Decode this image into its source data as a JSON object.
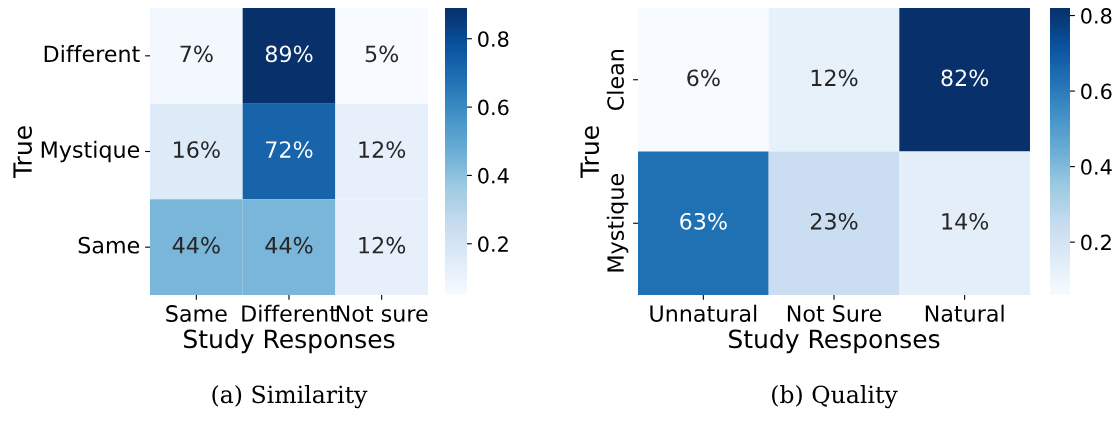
{
  "chart_data": [
    {
      "type": "heatmap",
      "xlabel": "Study Responses",
      "ylabel": "True",
      "categories": [
        "Same",
        "Different",
        "Not sure"
      ],
      "y_categories": [
        "Different",
        "Mystique",
        "Same"
      ],
      "cells": [
        [
          0.07,
          0.89,
          0.05
        ],
        [
          0.16,
          0.72,
          0.12
        ],
        [
          0.44,
          0.44,
          0.12
        ]
      ],
      "cell_labels": [
        [
          "7%",
          "89%",
          "5%"
        ],
        [
          "16%",
          "72%",
          "12%"
        ],
        [
          "44%",
          "44%",
          "12%"
        ]
      ],
      "clim": [
        0.05,
        0.89
      ],
      "cticks": [
        0.2,
        0.4,
        0.6,
        0.8
      ],
      "annotations": [
        "(a) Similarity"
      ]
    },
    {
      "type": "heatmap",
      "xlabel": "Study Responses",
      "ylabel": "True",
      "categories": [
        "Unnatural",
        "Not Sure",
        "Natural"
      ],
      "y_categories": [
        "Clean",
        "Mystique"
      ],
      "cells": [
        [
          0.06,
          0.12,
          0.82
        ],
        [
          0.63,
          0.23,
          0.14
        ]
      ],
      "cell_labels": [
        [
          "6%",
          "12%",
          "82%"
        ],
        [
          "63%",
          "23%",
          "14%"
        ]
      ],
      "clim": [
        0.06,
        0.82
      ],
      "cticks": [
        0.2,
        0.4,
        0.6,
        0.8
      ],
      "annotations": [
        "(b) Quality"
      ]
    }
  ]
}
